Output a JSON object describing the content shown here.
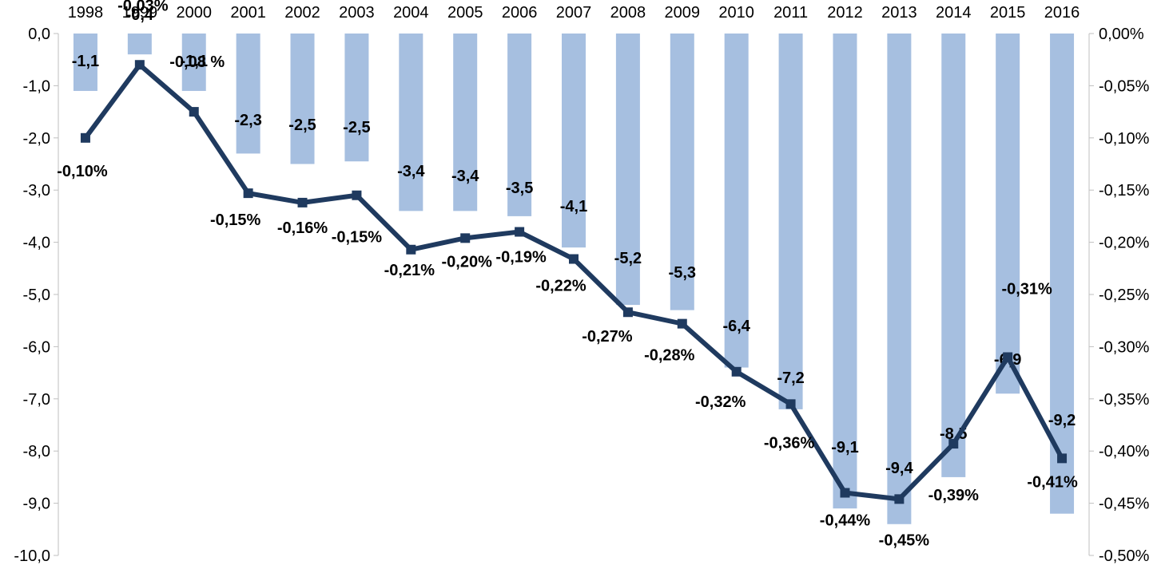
{
  "chart_data": {
    "type": "bar",
    "title": "",
    "categories": [
      "1998",
      "1999",
      "2000",
      "2001",
      "2002",
      "2003",
      "2004",
      "2005",
      "2006",
      "2007",
      "2008",
      "2009",
      "2010",
      "2011",
      "2012",
      "2013",
      "2014",
      "2015",
      "2016"
    ],
    "series": [
      {
        "type": "bar",
        "axis": "left",
        "color": "#a6bfe0",
        "values": [
          -1.1,
          -0.4,
          -1.1,
          -2.3,
          -2.5,
          -2.45,
          -3.4,
          -3.4,
          -3.5,
          -4.1,
          -5.2,
          -5.3,
          -6.4,
          -7.2,
          -9.1,
          -9.4,
          -8.5,
          -6.9,
          -9.2
        ],
        "labels": [
          "-1,1",
          "-0,4",
          "-1,1",
          "-2,3",
          "-2,5",
          "-2,5",
          "-3,4",
          "-3,4",
          "-3,5",
          "-4,1",
          "-5,2",
          "-5,3",
          "-6,4",
          "-7,2",
          "-9,1",
          "-9,4",
          "-8,5",
          "-6,9",
          "-9,2"
        ]
      },
      {
        "type": "line",
        "axis": "right",
        "color": "#1f3a5f",
        "marker": "square",
        "values": [
          -0.1,
          -0.03,
          -0.075,
          -0.153,
          -0.162,
          -0.155,
          -0.207,
          -0.196,
          -0.19,
          -0.216,
          -0.267,
          -0.278,
          -0.324,
          -0.355,
          -0.44,
          -0.446,
          -0.393,
          -0.31,
          -0.407
        ],
        "labels": [
          "-0,10%",
          "-0,03%",
          "-0,08 %",
          "-0,15%",
          "-0,16%",
          "-0,15%",
          "-0,21%",
          "-0,20%",
          "-0,19%",
          "-0,22%",
          "-0,27%",
          "-0,28%",
          "-0,32%",
          "-0,36%",
          "-0,44%",
          "-0,45%",
          "-0,39%",
          "-0,31%",
          "-0,41%"
        ]
      }
    ],
    "y_left": {
      "ylim": [
        -10,
        0
      ],
      "ticks": [
        0,
        -1,
        -2,
        -3,
        -4,
        -5,
        -6,
        -7,
        -8,
        -9,
        -10
      ],
      "tick_labels": [
        "0,0",
        "-1,0",
        "-2,0",
        "-3,0",
        "-4,0",
        "-5,0",
        "-6,0",
        "-7,0",
        "-8,0",
        "-9,0",
        "-10,0"
      ]
    },
    "y_right": {
      "ylim": [
        -0.5,
        0
      ],
      "ticks": [
        0,
        -0.05,
        -0.1,
        -0.15,
        -0.2,
        -0.25,
        -0.3,
        -0.35,
        -0.4,
        -0.45,
        -0.5
      ],
      "tick_labels": [
        "0,00%",
        "-0,05%",
        "-0,10%",
        "-0,15%",
        "-0,20%",
        "-0,25%",
        "-0,30%",
        "-0,35%",
        "-0,40%",
        "-0,45%",
        "-0,50%"
      ]
    },
    "x_axis_position": "top",
    "grid": false,
    "legend": "none"
  }
}
